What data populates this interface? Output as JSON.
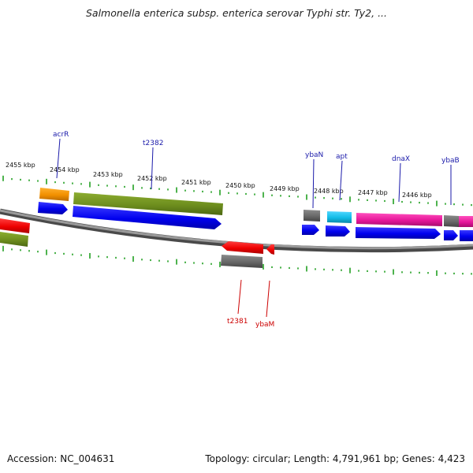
{
  "title": "Salmonella enterica subsp. enterica serovar Typhi str. Ty2, ...",
  "footer": {
    "accession": "Accession: NC_004631",
    "summary": "Topology: circular; Length: 4,791,961 bp; Genes: 4,423"
  },
  "scale_labels": [
    "2455 kbp",
    "2454 kbp",
    "2453 kbp",
    "2452 kbp",
    "2451 kbp",
    "2450 kbp",
    "2449 kbp",
    "2448 kbp",
    "2447 kbp",
    "2446 kbp"
  ],
  "gene_labels": {
    "forward": [
      "acrR",
      "t2382",
      "ybaN",
      "apt",
      "dnaX",
      "ybaB"
    ],
    "reverse": [
      "t2381",
      "ybaM"
    ]
  },
  "colors": {
    "forward_label": "#1a1aaa",
    "reverse_label": "#cc0000",
    "backbone": "#777777",
    "ticks": "#22a022",
    "cds": "#0000ee",
    "orange": "#f29000",
    "olive": "#6e8e1e",
    "gray": "#686868",
    "cyan": "#11bbe6",
    "magenta": "#e6179a",
    "red": "#ee0000"
  }
}
